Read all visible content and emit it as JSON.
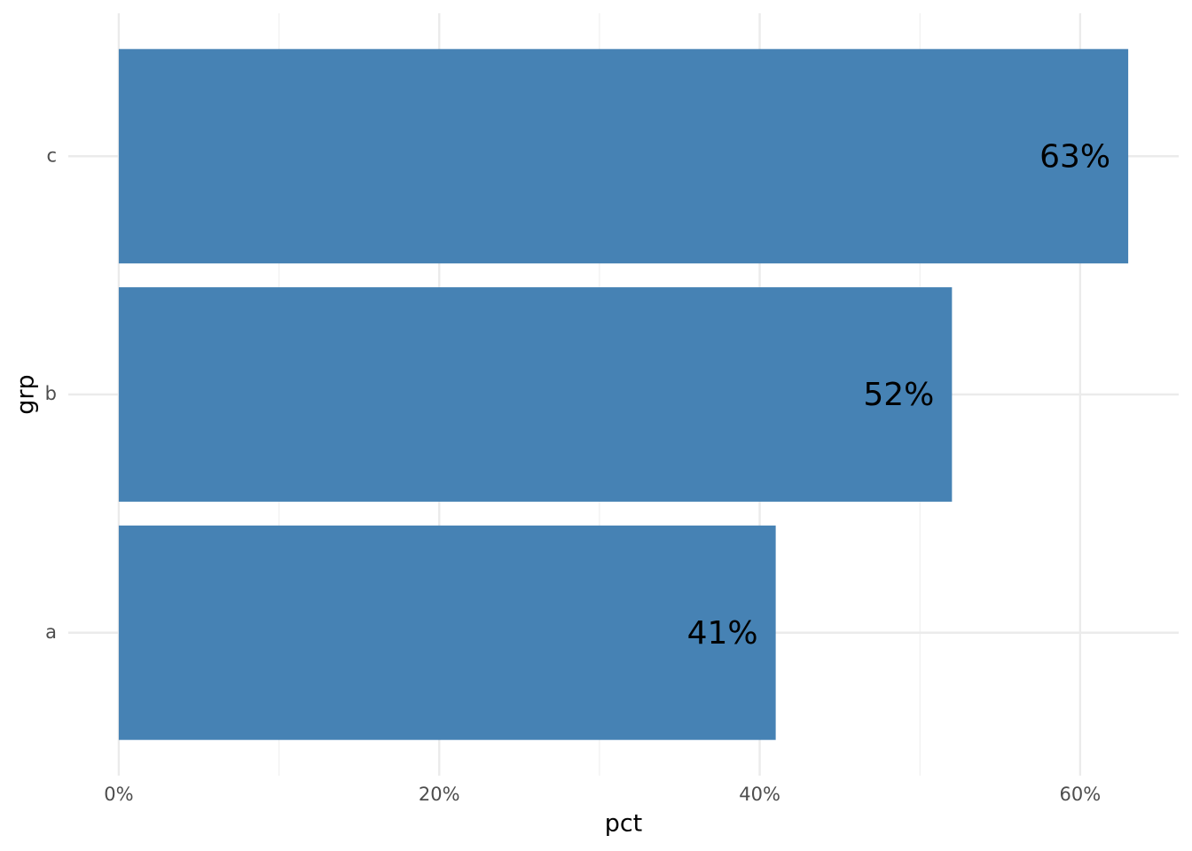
{
  "chart_data": {
    "type": "bar",
    "orientation": "horizontal",
    "x_label": "pct",
    "y_label": "grp",
    "categories": [
      "a",
      "b",
      "c"
    ],
    "values": [
      41,
      52,
      63
    ],
    "value_labels": [
      "41%",
      "52%",
      "63%"
    ],
    "color": "#4682b4",
    "xlim": [
      -3.15,
      66.15
    ],
    "xticks": [
      {
        "value": 0,
        "label": "0%"
      },
      {
        "value": 20,
        "label": "20%"
      },
      {
        "value": 40,
        "label": "40%"
      },
      {
        "value": 60,
        "label": "60%"
      }
    ],
    "grid": true
  }
}
